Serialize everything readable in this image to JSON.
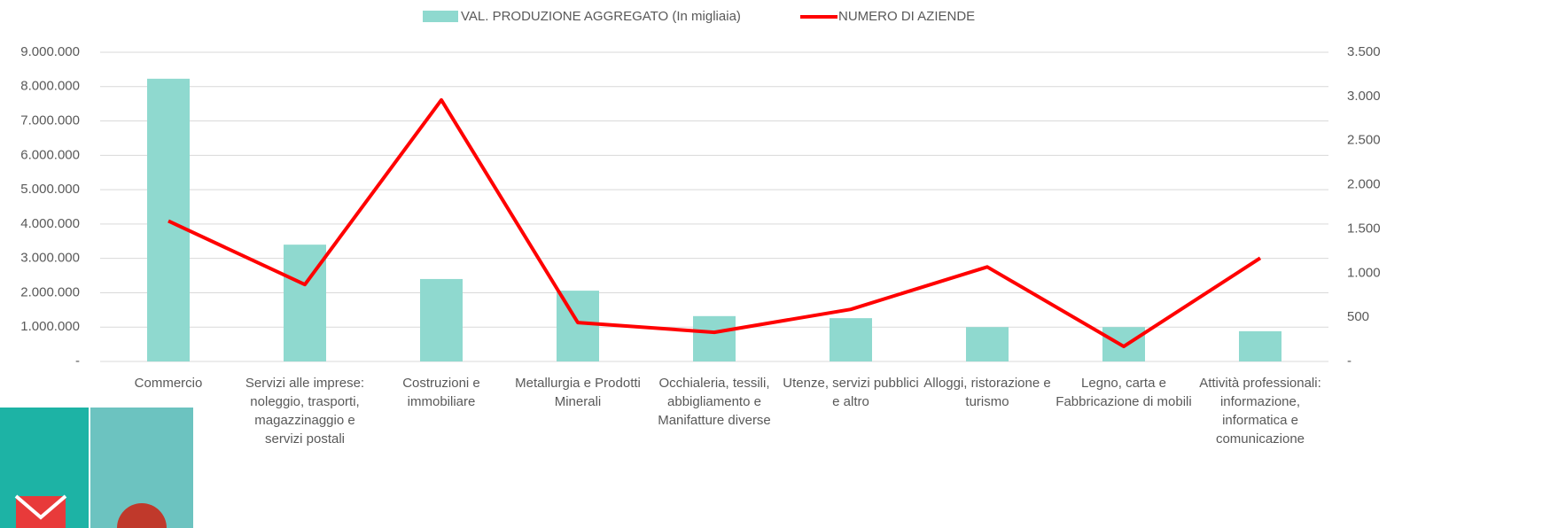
{
  "chart_data": {
    "type": "bar-line",
    "categories": [
      "Commercio",
      "Servizi alle imprese: noleggio, trasporti, magazzinaggio e servizi postali",
      "Costruzioni e immobiliare",
      "Metallurgia e Prodotti Minerali",
      "Occhialeria, tessili, abbigliamento e Manifatture diverse",
      "Utenze, servizi pubblici e altro",
      "Alloggi, ristorazione e turismo",
      "Legno, carta e Fabbricazione di mobili",
      "Attività professionali: informazione, informatica e comunicazione"
    ],
    "series": [
      {
        "name": "VAL. PRODUZIONE AGGREGATO (In migliaia)",
        "type": "bar",
        "color": "#8fd9cf",
        "values": [
          8230000,
          3400000,
          2400000,
          2060000,
          1320000,
          1260000,
          1000000,
          1000000,
          880000
        ]
      },
      {
        "name": "NUMERO DI AZIENDE",
        "type": "line",
        "axis": "y2",
        "color": "#ff0000",
        "values": [
          1590,
          870,
          2960,
          440,
          330,
          590,
          1070,
          170,
          1170
        ]
      }
    ],
    "ylim": [
      0,
      9000000
    ],
    "yticks": [
      {
        "value": 0,
        "label": "-"
      },
      {
        "value": 1000000,
        "label": "1.000.000"
      },
      {
        "value": 2000000,
        "label": "2.000.000"
      },
      {
        "value": 3000000,
        "label": "3.000.000"
      },
      {
        "value": 4000000,
        "label": "4.000.000"
      },
      {
        "value": 5000000,
        "label": "5.000.000"
      },
      {
        "value": 6000000,
        "label": "6.000.000"
      },
      {
        "value": 7000000,
        "label": "7.000.000"
      },
      {
        "value": 8000000,
        "label": "8.000.000"
      },
      {
        "value": 9000000,
        "label": "9.000.000"
      }
    ],
    "y2lim": [
      0,
      3500
    ],
    "y2ticks": [
      {
        "value": 0,
        "label": "-"
      },
      {
        "value": 500,
        "label": "500"
      },
      {
        "value": 1000,
        "label": "1.000"
      },
      {
        "value": 1500,
        "label": "1.500"
      },
      {
        "value": 2000,
        "label": "2.000"
      },
      {
        "value": 2500,
        "label": "2.500"
      },
      {
        "value": 3000,
        "label": "3.000"
      },
      {
        "value": 3500,
        "label": "3.500"
      }
    ],
    "grid": true,
    "legend": "top"
  }
}
